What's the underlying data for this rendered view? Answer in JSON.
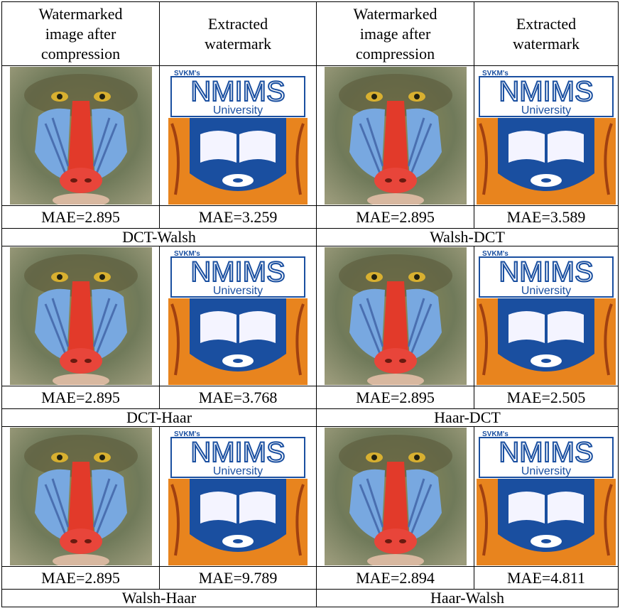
{
  "header": [
    "Watermarked image after compression",
    "Extracted watermark",
    "Watermarked image after compression",
    "Extracted watermark"
  ],
  "watermark": {
    "org": "SVKM's",
    "name": "NMIMS",
    "sub": "University"
  },
  "blocks": [
    {
      "mae": [
        "MAE=2.895",
        "MAE=3.259",
        "MAE=2.895",
        "MAE=3.589"
      ],
      "labels": [
        "DCT-Walsh",
        "Walsh-DCT"
      ]
    },
    {
      "mae": [
        "MAE=2.895",
        "MAE=3.768",
        "MAE=2.895",
        "MAE=2.505"
      ],
      "labels": [
        "DCT-Haar",
        "Haar-DCT"
      ]
    },
    {
      "mae": [
        "MAE=2.895",
        "MAE=9.789",
        "MAE=2.894",
        "MAE=4.811"
      ],
      "labels": [
        "Walsh-Haar",
        "Haar-Walsh"
      ]
    }
  ]
}
